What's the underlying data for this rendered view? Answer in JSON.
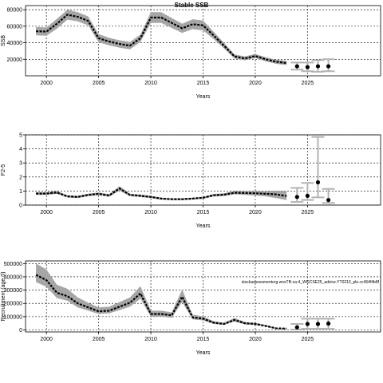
{
  "figure": {
    "title": "Stable SSB"
  },
  "chart_data": [
    {
      "type": "line",
      "id": "ssb",
      "title": "Stable SSB",
      "xlabel": "Years",
      "ylabel": "SSB",
      "xlim": [
        1998,
        2032
      ],
      "ylim": [
        0,
        85000
      ],
      "xticks": [
        2000,
        2005,
        2010,
        2015,
        2020,
        2025
      ],
      "yticks": [
        20000,
        40000,
        60000,
        80000
      ],
      "yticklabels": [
        "20000",
        "40000",
        "60000",
        "80000"
      ],
      "grid": true,
      "x": [
        1999,
        2000,
        2001,
        2002,
        2003,
        2004,
        2005,
        2006,
        2007,
        2008,
        2009,
        2010,
        2011,
        2012,
        2013,
        2014,
        2015,
        2016,
        2017,
        2018,
        2019,
        2020,
        2021,
        2022,
        2023
      ],
      "series": [
        {
          "values": [
            54000,
            53500,
            63000,
            74000,
            71500,
            66500,
            45500,
            41500,
            38500,
            36500,
            45500,
            70500,
            70500,
            64000,
            57500,
            62500,
            61000,
            49000,
            36500,
            23500,
            21000,
            24000,
            20000,
            17000,
            15500
          ],
          "lower": [
            49000,
            48500,
            57000,
            68000,
            66000,
            61000,
            40500,
            37000,
            34000,
            32000,
            41000,
            64000,
            64000,
            58000,
            52000,
            56500,
            55000,
            44500,
            33000,
            21000,
            18500,
            21500,
            17500,
            14500,
            13000
          ],
          "upper": [
            59000,
            58500,
            69000,
            80000,
            77000,
            72000,
            50500,
            46000,
            43000,
            41000,
            50000,
            77000,
            77000,
            70000,
            63000,
            68500,
            67000,
            53500,
            40000,
            26000,
            23500,
            26500,
            22500,
            19500,
            18000
          ]
        }
      ],
      "projection": {
        "x": [
          2024,
          2025,
          2026,
          2027
        ],
        "values": [
          11500,
          10500,
          11500,
          11500
        ],
        "lower": [
          7500,
          5500,
          5000,
          5500
        ],
        "upper": [
          16000,
          16000,
          19000,
          20000
        ]
      }
    },
    {
      "type": "line",
      "id": "f",
      "title": "",
      "xlabel": "Years",
      "ylabel": "F2-5",
      "xlim": [
        1998,
        2032
      ],
      "ylim": [
        0,
        5
      ],
      "xticks": [
        2000,
        2005,
        2010,
        2015,
        2020,
        2025
      ],
      "yticks": [
        0,
        1,
        2,
        3,
        4,
        5
      ],
      "yticklabels": [
        "0",
        "1",
        "2",
        "3",
        "4",
        "5"
      ],
      "grid": true,
      "x": [
        1999,
        2000,
        2001,
        2002,
        2003,
        2004,
        2005,
        2006,
        2007,
        2008,
        2009,
        2010,
        2011,
        2012,
        2013,
        2014,
        2015,
        2016,
        2017,
        2018,
        2019,
        2020,
        2021,
        2022,
        2023
      ],
      "series": [
        {
          "values": [
            0.82,
            0.82,
            0.9,
            0.62,
            0.58,
            0.72,
            0.8,
            0.68,
            1.18,
            0.72,
            0.66,
            0.58,
            0.46,
            0.42,
            0.42,
            0.46,
            0.52,
            0.7,
            0.74,
            0.88,
            0.86,
            0.84,
            0.8,
            0.76,
            0.64
          ],
          "lower": [
            0.72,
            0.72,
            0.8,
            0.54,
            0.5,
            0.63,
            0.7,
            0.59,
            1.02,
            0.63,
            0.57,
            0.5,
            0.39,
            0.36,
            0.36,
            0.4,
            0.45,
            0.61,
            0.64,
            0.76,
            0.72,
            0.68,
            0.62,
            0.5,
            0.36
          ],
          "upper": [
            0.92,
            0.92,
            1.0,
            0.7,
            0.66,
            0.81,
            0.9,
            0.77,
            1.34,
            0.81,
            0.75,
            0.66,
            0.53,
            0.48,
            0.48,
            0.52,
            0.59,
            0.79,
            0.84,
            1.0,
            1.0,
            1.0,
            0.98,
            1.02,
            1.0
          ]
        }
      ],
      "projection": {
        "x": [
          2024,
          2025,
          2026,
          2027
        ],
        "values": [
          0.58,
          0.66,
          1.62,
          0.36
        ],
        "lower": [
          0.22,
          0.36,
          0.55,
          0.15
        ],
        "upper": [
          1.22,
          1.58,
          4.85,
          1.15
        ]
      }
    },
    {
      "type": "line",
      "id": "recruitment",
      "title": "",
      "xlabel": "Years",
      "ylabel": "Recruitment (age 0)",
      "xlim": [
        1998,
        2032
      ],
      "ylim": [
        -15000,
        520000
      ],
      "xticks": [
        2000,
        2005,
        2010,
        2015,
        2020,
        2025
      ],
      "yticks": [
        0,
        100000,
        200000,
        300000,
        400000,
        500000
      ],
      "yticklabels": [
        "0",
        "100000",
        "200000",
        "300000",
        "400000",
        "500000"
      ],
      "grid": true,
      "annotation": "stockassessmentorg.wnsTB-ca-4_WGCSE25_advice.YT0210_ple.cc464f4b8f",
      "x": [
        1999,
        2000,
        2001,
        2002,
        2003,
        2004,
        2005,
        2006,
        2007,
        2008,
        2009,
        2010,
        2011,
        2012,
        2013,
        2014,
        2015,
        2016,
        2017,
        2018,
        2019,
        2020,
        2021,
        2022,
        2023
      ],
      "series": [
        {
          "values": [
            415000,
            375000,
            280000,
            255000,
            200000,
            170000,
            140000,
            145000,
            175000,
            205000,
            275000,
            120000,
            120000,
            110000,
            250000,
            95000,
            85000,
            55000,
            45000,
            75000,
            50000,
            45000,
            30000,
            12000,
            10000
          ],
          "lower": [
            360000,
            325000,
            240000,
            220000,
            170000,
            145000,
            120000,
            125000,
            150000,
            175000,
            235000,
            100000,
            100000,
            92000,
            210000,
            80000,
            72000,
            46000,
            38000,
            64000,
            42000,
            38000,
            25000,
            9000,
            7000
          ],
          "upper": [
            500000,
            455000,
            340000,
            310000,
            245000,
            205000,
            170000,
            175000,
            210000,
            245000,
            330000,
            145000,
            145000,
            132000,
            305000,
            115000,
            102000,
            66000,
            54000,
            90000,
            60000,
            54000,
            36000,
            15000,
            13000
          ]
        }
      ],
      "projection": {
        "x": [
          2024,
          2025,
          2026,
          2027
        ],
        "values": [
          20000,
          45000,
          45000,
          48000
        ],
        "lower": [
          3000,
          8000,
          8000,
          8000
        ],
        "upper": [
          45000,
          85000,
          85000,
          85000
        ]
      }
    }
  ]
}
